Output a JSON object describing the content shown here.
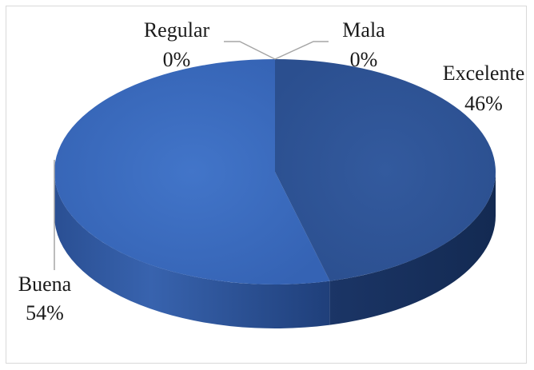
{
  "chart_data": {
    "type": "pie",
    "style": "3d",
    "title": "",
    "slices": [
      {
        "name": "Excelente",
        "value": 46,
        "label": "46%",
        "color": "#2f5597"
      },
      {
        "name": "Buena",
        "value": 54,
        "label": "54%",
        "color": "#3a66b8"
      },
      {
        "name": "Regular",
        "value": 0,
        "label": "0%",
        "color": "#4472c4"
      },
      {
        "name": "Mala",
        "value": 0,
        "label": "0%",
        "color": "#4472c4"
      }
    ],
    "legend": "none",
    "leader_line_color": "#a6a6a6"
  }
}
